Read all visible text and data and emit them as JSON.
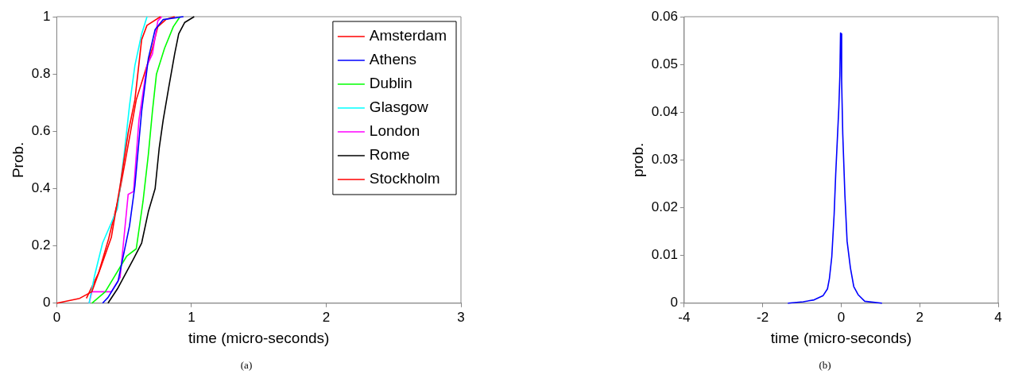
{
  "chart_data": [
    {
      "type": "line",
      "xlabel": "time (micro-seconds)",
      "ylabel": "Prob.",
      "xlim": [
        0,
        3
      ],
      "ylim": [
        0,
        1
      ],
      "xticks": [
        0,
        1,
        2,
        3
      ],
      "yticks": [
        0,
        0.2,
        0.4,
        0.6,
        0.8,
        1
      ],
      "grid": false,
      "legend": "top right",
      "annotations": [
        "(a)"
      ],
      "series": [
        {
          "name": "Amsterdam",
          "color": "#ff0000",
          "x": [
            0,
            0.17,
            0.26,
            0.33,
            0.405,
            0.47,
            0.53,
            0.58,
            0.63,
            0.67,
            0.77
          ],
          "values": [
            0,
            0.017,
            0.04,
            0.13,
            0.23,
            0.41,
            0.595,
            0.71,
            0.92,
            0.97,
            1
          ]
        },
        {
          "name": "Athens",
          "color": "#0000ff",
          "x": [
            0.34,
            0.38,
            0.455,
            0.54,
            0.58,
            0.63,
            0.68,
            0.73,
            0.79,
            0.94
          ],
          "values": [
            0,
            0.02,
            0.077,
            0.27,
            0.41,
            0.67,
            0.855,
            0.955,
            0.99,
            1
          ]
        },
        {
          "name": "Dublin",
          "color": "#00ff00",
          "x": [
            0.26,
            0.36,
            0.52,
            0.59,
            0.64,
            0.68,
            0.71,
            0.74,
            0.8,
            0.865,
            0.915
          ],
          "values": [
            0,
            0.04,
            0.165,
            0.19,
            0.355,
            0.52,
            0.67,
            0.8,
            0.89,
            0.965,
            1
          ]
        },
        {
          "name": "Glasgow",
          "color": "#00ffff",
          "x": [
            0.24,
            0.28,
            0.34,
            0.45,
            0.5,
            0.54,
            0.58,
            0.63,
            0.67
          ],
          "values": [
            0,
            0.095,
            0.21,
            0.33,
            0.52,
            0.69,
            0.83,
            0.94,
            1
          ]
        },
        {
          "name": "London",
          "color": "#ff00ff",
          "x": [
            0.24,
            0.26,
            0.405,
            0.47,
            0.53,
            0.57,
            0.61,
            0.67,
            0.71,
            0.75,
            0.78
          ],
          "values": [
            0,
            0.04,
            0.04,
            0.09,
            0.38,
            0.39,
            0.64,
            0.83,
            0.87,
            0.985,
            1
          ]
        },
        {
          "name": "Rome",
          "color": "#000000",
          "x": [
            0.38,
            0.45,
            0.57,
            0.63,
            0.68,
            0.73,
            0.76,
            0.79,
            0.83,
            0.875,
            0.905,
            0.95,
            1.02
          ],
          "values": [
            0,
            0.05,
            0.155,
            0.21,
            0.32,
            0.4,
            0.54,
            0.64,
            0.75,
            0.87,
            0.94,
            0.98,
            1
          ]
        },
        {
          "name": "Stockholm",
          "color": "#ff0000",
          "x": [
            0.22,
            0.31,
            0.385,
            0.455,
            0.51,
            0.59,
            0.65,
            0.71,
            0.75,
            0.81,
            0.875
          ],
          "values": [
            0.017,
            0.105,
            0.225,
            0.36,
            0.5,
            0.71,
            0.8,
            0.89,
            0.965,
            0.99,
            1
          ]
        }
      ]
    },
    {
      "type": "line",
      "xlabel": "time (micro-seconds)",
      "ylabel": "prob.",
      "xlim": [
        -4,
        4
      ],
      "ylim": [
        0,
        0.06
      ],
      "xticks": [
        -4,
        -2,
        0,
        2,
        4
      ],
      "yticks": [
        0,
        0.01,
        0.02,
        0.03,
        0.04,
        0.05,
        0.06
      ],
      "grid": false,
      "annotations": [
        "(b)"
      ],
      "series": [
        {
          "color": "#0000ff",
          "x": [
            -1.36,
            -0.97,
            -0.69,
            -0.46,
            -0.35,
            -0.3,
            -0.24,
            -0.18,
            -0.14,
            -0.1,
            -0.06,
            -0.034,
            -0.017,
            0,
            0.011,
            0.04,
            0.095,
            0.15,
            0.235,
            0.32,
            0.43,
            0.6,
            1.04
          ],
          "values": [
            0,
            0.0003,
            0.0007,
            0.0016,
            0.003,
            0.0052,
            0.0097,
            0.0186,
            0.027,
            0.034,
            0.041,
            0.0477,
            0.0566,
            0.0564,
            0.0466,
            0.0354,
            0.0225,
            0.013,
            0.0074,
            0.0035,
            0.0018,
            0.0004,
            0
          ]
        }
      ]
    }
  ]
}
